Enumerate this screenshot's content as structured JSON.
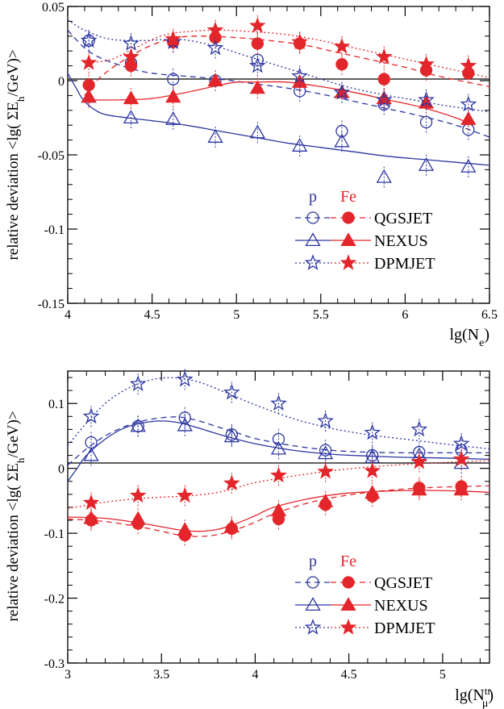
{
  "colors": {
    "p": "#2b35a0",
    "fe": "#e3262b",
    "axis": "#000000"
  },
  "legend": {
    "p_label": "p",
    "fe_label": "Fe"
  },
  "chart_data": [
    {
      "type": "scatter",
      "ylabel": "relative deviation <lg( ΣE_h /GeV)>",
      "xlabel": "lg(N_e)",
      "xlim": [
        4,
        6.5
      ],
      "ylim": [
        -0.15,
        0.05
      ],
      "xticks": [
        4,
        4.5,
        5,
        5.5,
        6,
        6.5
      ],
      "xtick_labels": [
        "4",
        "4.5",
        "5",
        "5.5",
        "6",
        "6.5"
      ],
      "yticks": [
        -0.15,
        -0.1,
        -0.05,
        0,
        0.05
      ],
      "ytick_labels": [
        "-0.15",
        "-0.1",
        "-0.05",
        "0",
        "0.05"
      ],
      "legend_position": "lower-right",
      "x": [
        4.125,
        4.375,
        4.625,
        4.875,
        5.125,
        5.375,
        5.625,
        5.875,
        6.125,
        6.375
      ],
      "series": [
        {
          "name": "QGSJET",
          "primary": "p",
          "marker": "circle-open",
          "line": "dashed",
          "values": [
            0.027,
            0.012,
            0.001,
            0.0,
            0.014,
            -0.007,
            -0.034,
            -0.016,
            -0.028,
            -0.033
          ],
          "curve_x": [
            4.0,
            4.1,
            4.2,
            4.35,
            4.5,
            4.7,
            4.9,
            5.1,
            5.3,
            5.5,
            5.7,
            5.9,
            6.1,
            6.3,
            6.5
          ],
          "curve_y": [
            0.034,
            0.022,
            0.015,
            0.009,
            0.005,
            0.003,
            0.001,
            -0.002,
            -0.005,
            -0.009,
            -0.014,
            -0.019,
            -0.024,
            -0.03,
            -0.038
          ]
        },
        {
          "name": "QGSJET",
          "primary": "Fe",
          "marker": "circle-filled",
          "line": "dashed",
          "values": [
            -0.003,
            0.01,
            0.026,
            0.029,
            0.025,
            0.025,
            0.011,
            0.001,
            0.007,
            0.005
          ],
          "curve_x": [
            4.1,
            4.2,
            4.35,
            4.5,
            4.65,
            4.8,
            5.0,
            5.2,
            5.4,
            5.6,
            5.8,
            6.0,
            6.2,
            6.5
          ],
          "curve_y": [
            -0.01,
            0.003,
            0.015,
            0.024,
            0.029,
            0.03,
            0.029,
            0.027,
            0.024,
            0.019,
            0.014,
            0.009,
            0.003,
            -0.004
          ]
        },
        {
          "name": "NEXUS",
          "primary": "p",
          "marker": "triangle-open",
          "line": "solid",
          "values": [
            -0.011,
            -0.025,
            -0.026,
            -0.038,
            -0.035,
            -0.044,
            -0.041,
            -0.065,
            -0.057,
            -0.058
          ],
          "curve_x": [
            4.0,
            4.05,
            4.1,
            4.2,
            4.35,
            4.5,
            4.7,
            4.9,
            5.1,
            5.3,
            5.5,
            5.7,
            5.9,
            6.1,
            6.3,
            6.5
          ],
          "curve_y": [
            0.005,
            -0.005,
            -0.014,
            -0.022,
            -0.025,
            -0.027,
            -0.03,
            -0.034,
            -0.038,
            -0.042,
            -0.045,
            -0.048,
            -0.051,
            -0.053,
            -0.055,
            -0.057
          ]
        },
        {
          "name": "NEXUS",
          "primary": "Fe",
          "marker": "triangle-filled",
          "line": "solid",
          "values": [
            -0.011,
            -0.012,
            -0.011,
            0.0,
            -0.005,
            -0.001,
            -0.008,
            -0.012,
            -0.015,
            -0.026
          ],
          "curve_x": [
            4.1,
            4.3,
            4.5,
            4.7,
            4.9,
            5.0,
            5.1,
            5.3,
            5.5,
            5.7,
            5.9,
            6.1,
            6.3,
            6.4
          ],
          "curve_y": [
            -0.013,
            -0.013,
            -0.012,
            -0.008,
            -0.003,
            -0.001,
            -0.001,
            -0.001,
            -0.004,
            -0.008,
            -0.013,
            -0.018,
            -0.025,
            -0.03
          ]
        },
        {
          "name": "DPMJET",
          "primary": "p",
          "marker": "star-open",
          "line": "dotted",
          "values": [
            0.027,
            0.025,
            0.026,
            0.022,
            0.01,
            0.003,
            -0.008,
            -0.013,
            -0.013,
            -0.016
          ],
          "curve_x": [
            4.0,
            4.1,
            4.25,
            4.45,
            4.65,
            4.85,
            5.05,
            5.25,
            5.45,
            5.65,
            5.85,
            6.05,
            6.25,
            6.5
          ],
          "curve_y": [
            0.041,
            0.034,
            0.028,
            0.027,
            0.028,
            0.024,
            0.017,
            0.01,
            0.003,
            -0.004,
            -0.009,
            -0.013,
            -0.017,
            -0.021
          ]
        },
        {
          "name": "DPMJET",
          "primary": "Fe",
          "marker": "star-filled",
          "line": "dotted",
          "values": [
            0.012,
            0.016,
            0.028,
            0.034,
            0.037,
            0.026,
            0.023,
            0.016,
            0.011,
            0.01
          ],
          "curve_x": [
            4.1,
            4.25,
            4.4,
            4.55,
            4.7,
            4.9,
            5.1,
            5.3,
            5.5,
            5.7,
            5.9,
            6.1,
            6.3,
            6.5
          ],
          "curve_y": [
            0.012,
            0.014,
            0.022,
            0.03,
            0.033,
            0.034,
            0.033,
            0.031,
            0.027,
            0.022,
            0.017,
            0.012,
            0.007,
            0.002
          ]
        }
      ]
    },
    {
      "type": "scatter",
      "ylabel": "relative deviation <lg( ΣE_h /GeV)>",
      "xlabel": "lg(N_μ^tr)",
      "xlim": [
        3,
        5.25
      ],
      "ylim": [
        -0.3,
        0.15
      ],
      "xticks": [
        3,
        3.5,
        4,
        4.5,
        5
      ],
      "xtick_labels": [
        "3",
        "3.5",
        "4",
        "4.5",
        "5"
      ],
      "yticks": [
        -0.3,
        -0.2,
        -0.1,
        0,
        0.1
      ],
      "ytick_labels": [
        "-0.3",
        "-0.2",
        "-0.1",
        "0",
        "0.1"
      ],
      "legend_position": "lower-right",
      "x": [
        3.125,
        3.375,
        3.625,
        3.875,
        4.125,
        4.375,
        4.625,
        4.875,
        5.1
      ],
      "series": [
        {
          "name": "QGSJET",
          "primary": "p",
          "marker": "circle-open",
          "line": "dashed",
          "values": [
            0.04,
            0.065,
            0.078,
            0.052,
            0.045,
            0.028,
            0.02,
            0.025,
            0.028
          ],
          "curve_x": [
            3.0,
            3.1,
            3.2,
            3.3,
            3.4,
            3.5,
            3.6,
            3.7,
            3.8,
            3.9,
            4.0,
            4.2,
            4.4,
            4.6,
            4.8,
            5.0,
            5.25
          ],
          "curve_y": [
            0.005,
            0.03,
            0.05,
            0.064,
            0.073,
            0.078,
            0.079,
            0.073,
            0.064,
            0.055,
            0.046,
            0.035,
            0.028,
            0.025,
            0.024,
            0.024,
            0.024
          ]
        },
        {
          "name": "QGSJET",
          "primary": "Fe",
          "marker": "circle-filled",
          "line": "dashed",
          "values": [
            -0.08,
            -0.085,
            -0.103,
            -0.093,
            -0.078,
            -0.056,
            -0.043,
            -0.03,
            -0.028
          ],
          "curve_x": [
            3.0,
            3.2,
            3.4,
            3.5,
            3.6,
            3.7,
            3.8,
            3.9,
            4.0,
            4.1,
            4.3,
            4.5,
            4.7,
            4.9,
            5.1,
            5.25
          ],
          "curve_y": [
            -0.078,
            -0.082,
            -0.091,
            -0.097,
            -0.103,
            -0.105,
            -0.102,
            -0.094,
            -0.083,
            -0.07,
            -0.052,
            -0.041,
            -0.034,
            -0.03,
            -0.028,
            -0.027
          ]
        },
        {
          "name": "NEXUS",
          "primary": "p",
          "marker": "triangle-open",
          "line": "solid",
          "values": [
            0.02,
            0.065,
            0.066,
            0.049,
            0.03,
            0.023,
            0.017,
            0.02,
            0.008
          ],
          "curve_x": [
            3.0,
            3.05,
            3.1,
            3.2,
            3.3,
            3.4,
            3.5,
            3.6,
            3.7,
            3.8,
            3.9,
            4.0,
            4.2,
            4.4,
            4.6,
            4.8,
            5.0,
            5.25
          ],
          "curve_y": [
            -0.02,
            0.0,
            0.02,
            0.045,
            0.062,
            0.07,
            0.073,
            0.07,
            0.062,
            0.053,
            0.045,
            0.038,
            0.028,
            0.022,
            0.019,
            0.017,
            0.016,
            0.014
          ]
        },
        {
          "name": "NEXUS",
          "primary": "Fe",
          "marker": "triangle-filled",
          "line": "solid",
          "values": [
            -0.077,
            -0.078,
            -0.095,
            -0.09,
            -0.065,
            -0.051,
            -0.038,
            -0.033,
            -0.033
          ],
          "curve_x": [
            3.0,
            3.2,
            3.4,
            3.5,
            3.6,
            3.7,
            3.8,
            3.9,
            4.0,
            4.1,
            4.3,
            4.5,
            4.7,
            4.9,
            5.1,
            5.25
          ],
          "curve_y": [
            -0.075,
            -0.077,
            -0.085,
            -0.09,
            -0.095,
            -0.097,
            -0.094,
            -0.085,
            -0.073,
            -0.06,
            -0.046,
            -0.038,
            -0.035,
            -0.034,
            -0.035,
            -0.037
          ]
        },
        {
          "name": "DPMJET",
          "primary": "p",
          "marker": "star-open",
          "line": "dotted",
          "values": [
            0.08,
            0.13,
            0.137,
            0.117,
            0.1,
            0.073,
            0.055,
            0.06,
            0.038
          ],
          "curve_x": [
            3.0,
            3.1,
            3.2,
            3.3,
            3.4,
            3.5,
            3.6,
            3.7,
            3.8,
            3.9,
            4.0,
            4.2,
            4.4,
            4.6,
            4.8,
            5.0,
            5.25
          ],
          "curve_y": [
            0.035,
            0.07,
            0.1,
            0.12,
            0.133,
            0.139,
            0.139,
            0.133,
            0.122,
            0.11,
            0.098,
            0.077,
            0.062,
            0.052,
            0.045,
            0.038,
            0.03
          ]
        },
        {
          "name": "DPMJET",
          "primary": "Fe",
          "marker": "star-filled",
          "line": "dotted",
          "values": [
            -0.053,
            -0.042,
            -0.042,
            -0.023,
            -0.011,
            -0.005,
            -0.004,
            0.01,
            0.014
          ],
          "curve_x": [
            3.0,
            3.2,
            3.4,
            3.6,
            3.7,
            3.8,
            3.9,
            4.0,
            4.2,
            4.4,
            4.6,
            4.8,
            5.0,
            5.25
          ],
          "curve_y": [
            -0.062,
            -0.052,
            -0.046,
            -0.043,
            -0.041,
            -0.037,
            -0.03,
            -0.022,
            -0.012,
            -0.004,
            0.002,
            0.006,
            0.009,
            0.012
          ]
        }
      ]
    }
  ]
}
